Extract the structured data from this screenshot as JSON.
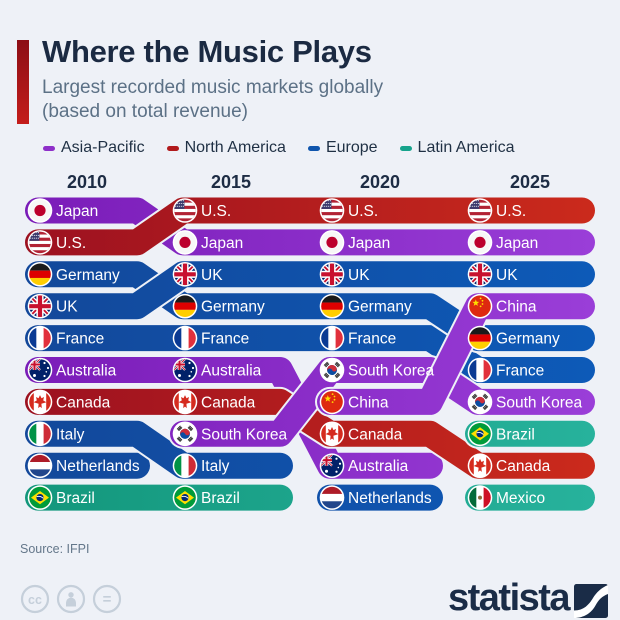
{
  "header": {
    "title": "Where the Music Plays",
    "subtitle_line1": "Largest recorded music markets globally",
    "subtitle_line2": "(based on total revenue)"
  },
  "legend": {
    "items": [
      {
        "label": "Asia-Pacific",
        "color": "#8e2fc9"
      },
      {
        "label": "North America",
        "color": "#b11a1c"
      },
      {
        "label": "Europe",
        "color": "#0f55ad"
      },
      {
        "label": "Latin America",
        "color": "#16a38c"
      }
    ]
  },
  "chart_data": {
    "type": "bump",
    "title": "Where the Music Plays",
    "subtitle": "Largest recorded music markets globally (based on total revenue)",
    "years": [
      "2010",
      "2015",
      "2020",
      "2025"
    ],
    "rank_axis": {
      "min": 1,
      "max": 10
    },
    "legend_position": "top",
    "regions": {
      "Asia-Pacific": {
        "color": "#8c2fca",
        "dark": "#7a1cb8",
        "light": "#9a3ed8"
      },
      "North America": {
        "color": "#bb2018",
        "dark": "#9c1120",
        "light": "#cb2a1c"
      },
      "Europe": {
        "color": "#0f55ad",
        "dark": "#13489a",
        "light": "#0d5ab8"
      },
      "Latin America": {
        "color": "#1ca68f",
        "dark": "#13977c",
        "light": "#27b29c"
      }
    },
    "countries": [
      {
        "name": "Japan",
        "flag": "jp",
        "region": "Asia-Pacific",
        "ranks": [
          1,
          2,
          2,
          2
        ]
      },
      {
        "name": "U.S.",
        "flag": "us",
        "region": "North America",
        "ranks": [
          2,
          1,
          1,
          1
        ]
      },
      {
        "name": "Germany",
        "flag": "de",
        "region": "Europe",
        "ranks": [
          3,
          4,
          4,
          5
        ]
      },
      {
        "name": "UK",
        "flag": "gb",
        "region": "Europe",
        "ranks": [
          4,
          3,
          3,
          3
        ]
      },
      {
        "name": "France",
        "flag": "fr",
        "region": "Europe",
        "ranks": [
          5,
          5,
          5,
          6
        ]
      },
      {
        "name": "Australia",
        "flag": "au",
        "region": "Asia-Pacific",
        "ranks": [
          6,
          6,
          9,
          null
        ]
      },
      {
        "name": "Canada",
        "flag": "ca",
        "region": "North America",
        "ranks": [
          7,
          7,
          8,
          9
        ]
      },
      {
        "name": "Italy",
        "flag": "it",
        "region": "Europe",
        "ranks": [
          8,
          9,
          null,
          null
        ]
      },
      {
        "name": "Netherlands",
        "flag": "nl",
        "region": "Europe",
        "ranks": [
          9,
          null,
          10,
          null
        ]
      },
      {
        "name": "Brazil",
        "flag": "br",
        "region": "Latin America",
        "ranks": [
          10,
          10,
          null,
          8
        ]
      },
      {
        "name": "South Korea",
        "flag": "kr",
        "region": "Asia-Pacific",
        "ranks": [
          null,
          8,
          6,
          7
        ]
      },
      {
        "name": "China",
        "flag": "cn",
        "region": "Asia-Pacific",
        "ranks": [
          null,
          null,
          7,
          4
        ]
      },
      {
        "name": "Mexico",
        "flag": "mx",
        "region": "Latin America",
        "ranks": [
          null,
          null,
          null,
          10
        ]
      }
    ]
  },
  "footer": {
    "source": "Source: IFPI",
    "brand": "statista",
    "license_icons": [
      "cc",
      "person",
      "equals"
    ]
  }
}
